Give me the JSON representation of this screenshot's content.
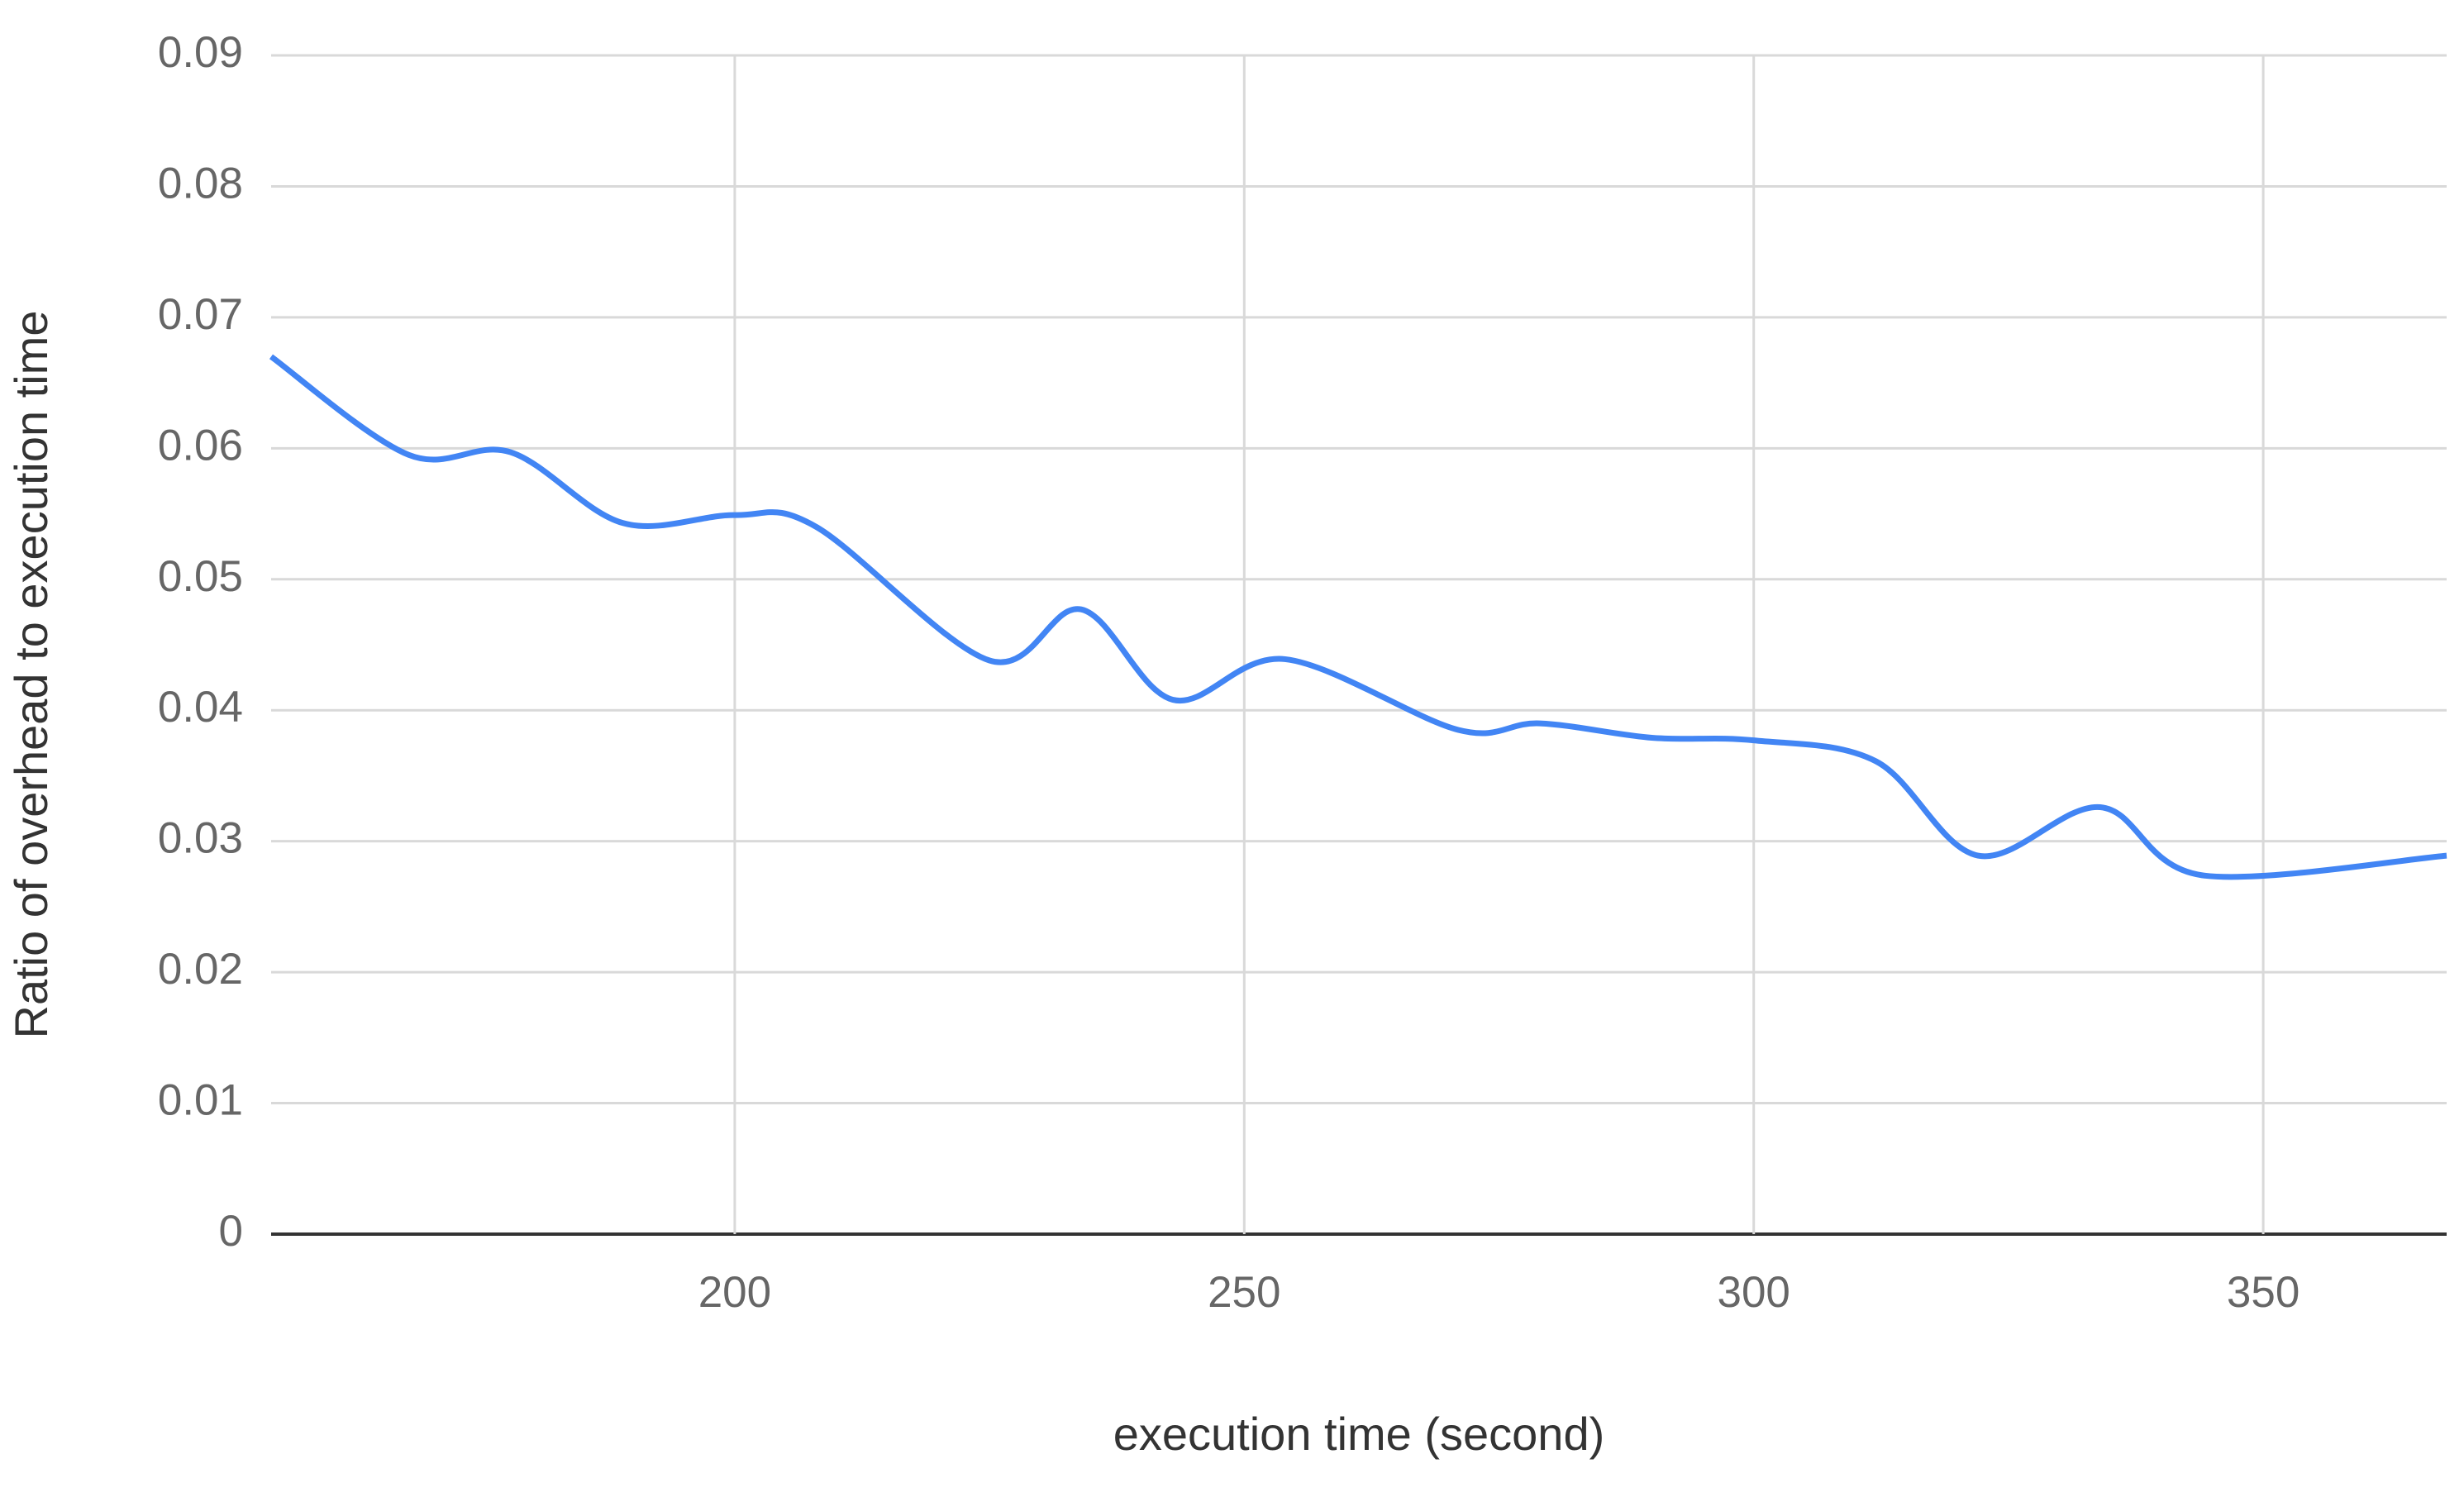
{
  "chart_data": {
    "type": "line",
    "x_label": "execution time (second)",
    "y_label": "Ratio of overhead to execution time",
    "x": [
      154.5,
      168,
      178,
      189,
      200,
      208,
      225,
      234,
      243,
      254,
      271,
      279,
      290,
      300,
      312,
      322,
      334,
      344,
      368
    ],
    "series": [
      {
        "name": "Ratio",
        "color": "#4285f4",
        "values": [
          0.067,
          0.0595,
          0.0597,
          0.0543,
          0.0549,
          0.054,
          0.0438,
          0.0477,
          0.0408,
          0.0439,
          0.0385,
          0.039,
          0.0379,
          0.0377,
          0.0361,
          0.0289,
          0.0326,
          0.0274,
          0.0289
        ]
      }
    ],
    "xlim": [
      154.5,
      368
    ],
    "ylim": [
      0,
      0.09
    ],
    "xticks": [
      200,
      250,
      300,
      350
    ],
    "yticks": [
      0,
      0.01,
      0.02,
      0.03,
      0.04,
      0.05,
      0.06,
      0.07,
      0.08,
      0.09
    ],
    "grid": true
  }
}
